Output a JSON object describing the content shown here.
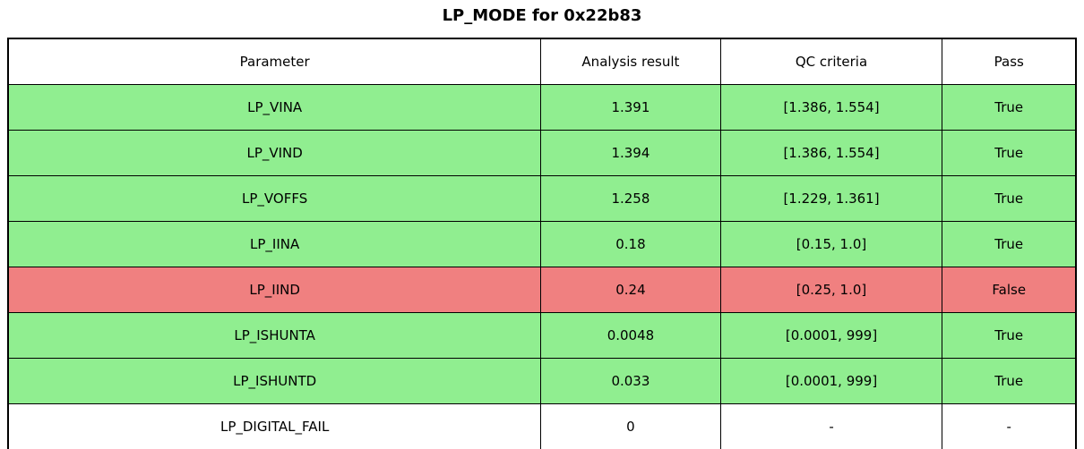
{
  "title": "LP_MODE for 0x22b83",
  "colors": {
    "pass": "#90EE90",
    "fail": "#F08080",
    "none": "#FFFFFF",
    "border": "#000000",
    "text": "#000000"
  },
  "table": {
    "headers": [
      "Parameter",
      "Analysis result",
      "QC criteria",
      "Pass"
    ],
    "rows": [
      {
        "parameter": "LP_VINA",
        "result": "1.391",
        "criteria": "[1.386, 1.554]",
        "pass": "True",
        "status": "pass"
      },
      {
        "parameter": "LP_VIND",
        "result": "1.394",
        "criteria": "[1.386, 1.554]",
        "pass": "True",
        "status": "pass"
      },
      {
        "parameter": "LP_VOFFS",
        "result": "1.258",
        "criteria": "[1.229, 1.361]",
        "pass": "True",
        "status": "pass"
      },
      {
        "parameter": "LP_IINA",
        "result": "0.18",
        "criteria": "[0.15, 1.0]",
        "pass": "True",
        "status": "pass"
      },
      {
        "parameter": "LP_IIND",
        "result": "0.24",
        "criteria": "[0.25, 1.0]",
        "pass": "False",
        "status": "fail"
      },
      {
        "parameter": "LP_ISHUNTA",
        "result": "0.0048",
        "criteria": "[0.0001, 999]",
        "pass": "True",
        "status": "pass"
      },
      {
        "parameter": "LP_ISHUNTD",
        "result": "0.033",
        "criteria": "[0.0001, 999]",
        "pass": "True",
        "status": "pass"
      },
      {
        "parameter": "LP_DIGITAL_FAIL",
        "result": "0",
        "criteria": "-",
        "pass": "-",
        "status": "none"
      }
    ]
  },
  "chart_data": {
    "type": "table",
    "title": "LP_MODE for 0x22b83",
    "columns": [
      "Parameter",
      "Analysis result",
      "QC criteria",
      "Pass"
    ],
    "rows": [
      [
        "LP_VINA",
        "1.391",
        "[1.386, 1.554]",
        "True"
      ],
      [
        "LP_VIND",
        "1.394",
        "[1.386, 1.554]",
        "True"
      ],
      [
        "LP_VOFFS",
        "1.258",
        "[1.229, 1.361]",
        "True"
      ],
      [
        "LP_IINA",
        "0.18",
        "[0.15, 1.0]",
        "True"
      ],
      [
        "LP_IIND",
        "0.24",
        "[0.25, 1.0]",
        "False"
      ],
      [
        "LP_ISHUNTA",
        "0.0048",
        "[0.0001, 999]",
        "True"
      ],
      [
        "LP_ISHUNTD",
        "0.033",
        "[0.0001, 999]",
        "True"
      ],
      [
        "LP_DIGITAL_FAIL",
        "0",
        "-",
        "-"
      ]
    ],
    "row_colors": [
      "#90EE90",
      "#90EE90",
      "#90EE90",
      "#90EE90",
      "#F08080",
      "#90EE90",
      "#90EE90",
      "#FFFFFF"
    ],
    "header_color": "#FFFFFF",
    "grid_color": "#000000"
  }
}
